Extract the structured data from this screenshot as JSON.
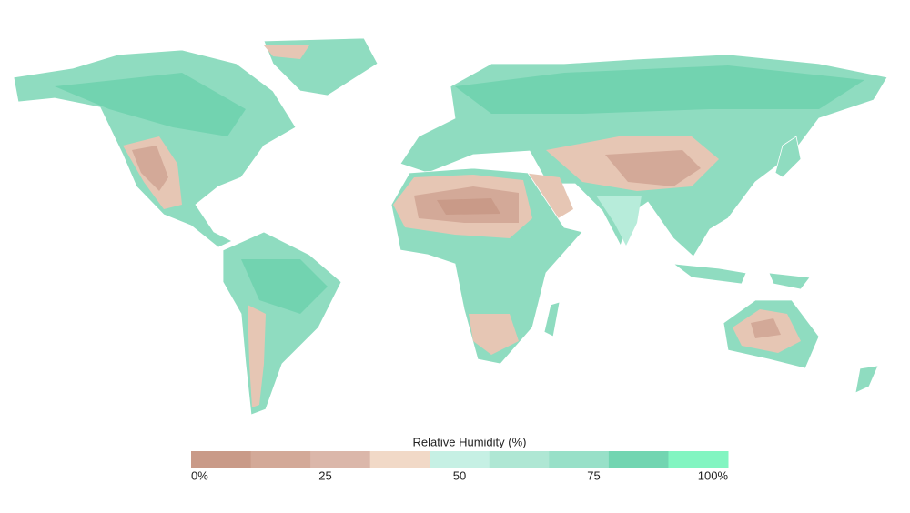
{
  "legend": {
    "title": "Relative Humidity (%)",
    "range": [
      0,
      100
    ],
    "colors": [
      "#c99a88",
      "#d3a998",
      "#dbb7aa",
      "#f1d9c7",
      "#c6f0e4",
      "#afe7d4",
      "#98e0c8",
      "#72d5b1",
      "#82f5c1"
    ],
    "ticks": [
      {
        "value": 0,
        "label": "0%"
      },
      25,
      50,
      75,
      {
        "value": 100,
        "label": "100%"
      }
    ]
  }
}
